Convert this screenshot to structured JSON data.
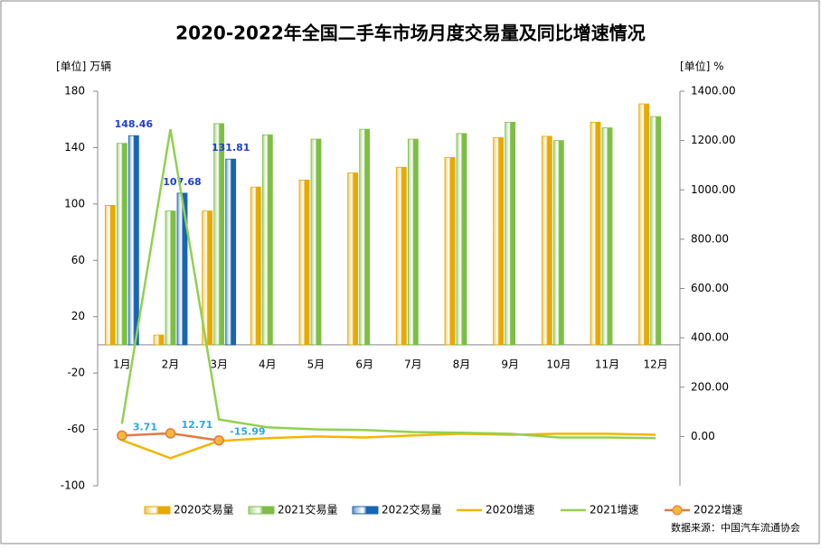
{
  "chart_data": {
    "type": "bar-line",
    "title": "2020-2022年全国二手车市场月度交易量及同比增速情况",
    "y_label": "[单位] 万辆",
    "y2_label": "[单位] %",
    "source": "数据来源：中国汽车流通协会",
    "categories": [
      "1月",
      "2月",
      "3月",
      "4月",
      "5月",
      "6月",
      "7月",
      "8月",
      "9月",
      "10月",
      "11月",
      "12月"
    ],
    "series": [
      {
        "name": "2020交易量",
        "kind": "bar",
        "color": "#e8a900",
        "values": [
          99,
          7,
          95,
          112,
          117,
          122,
          126,
          133,
          147,
          148,
          158,
          171
        ]
      },
      {
        "name": "2021交易量",
        "kind": "bar",
        "color": "#7dbf45",
        "values": [
          143,
          95,
          157,
          149,
          146,
          153,
          146,
          150,
          158,
          145,
          154,
          162
        ]
      },
      {
        "name": "2022交易量",
        "kind": "bar",
        "color": "#1765b3",
        "values": [
          148.46,
          107.68,
          131.81,
          null,
          null,
          null,
          null,
          null,
          null,
          null,
          null,
          null
        ],
        "label_color": "#1f3fd0"
      },
      {
        "name": "2020增速",
        "kind": "line",
        "axis": "y2",
        "color": "#f2b600",
        "values": [
          -15,
          -88,
          -18,
          -7,
          0,
          -4,
          4,
          11,
          7,
          11,
          11,
          7
        ]
      },
      {
        "name": "2021增速",
        "kind": "line",
        "axis": "y2",
        "color": "#92d050",
        "values": [
          51,
          1246,
          69,
          37,
          29,
          26,
          18,
          15,
          11,
          -4,
          -4,
          -7
        ]
      },
      {
        "name": "2022增速",
        "kind": "line",
        "axis": "y2",
        "color": "#e07a45",
        "marker": "#f5b83a",
        "label_color": "#2aa7e0",
        "values": [
          3.71,
          12.71,
          -15.99,
          null,
          null,
          null,
          null,
          null,
          null,
          null,
          null,
          null
        ]
      }
    ],
    "ylim": [
      -100,
      180
    ],
    "yticks": [
      -100,
      -60,
      -20,
      20,
      60,
      100,
      140,
      180
    ],
    "y2lim": [
      -200,
      1400
    ],
    "y2ticks": [
      {
        "value": 0,
        "label": "0.00"
      },
      {
        "value": 200,
        "label": "200.00"
      },
      {
        "value": 400,
        "label": "400.00"
      },
      {
        "value": 600,
        "label": "600.00"
      },
      {
        "value": 800,
        "label": "800.00"
      },
      {
        "value": 1000,
        "label": "1000.00"
      },
      {
        "value": 1200,
        "label": "1200.00"
      },
      {
        "value": 1400,
        "label": "1400.00"
      }
    ],
    "legend": "bottom"
  }
}
